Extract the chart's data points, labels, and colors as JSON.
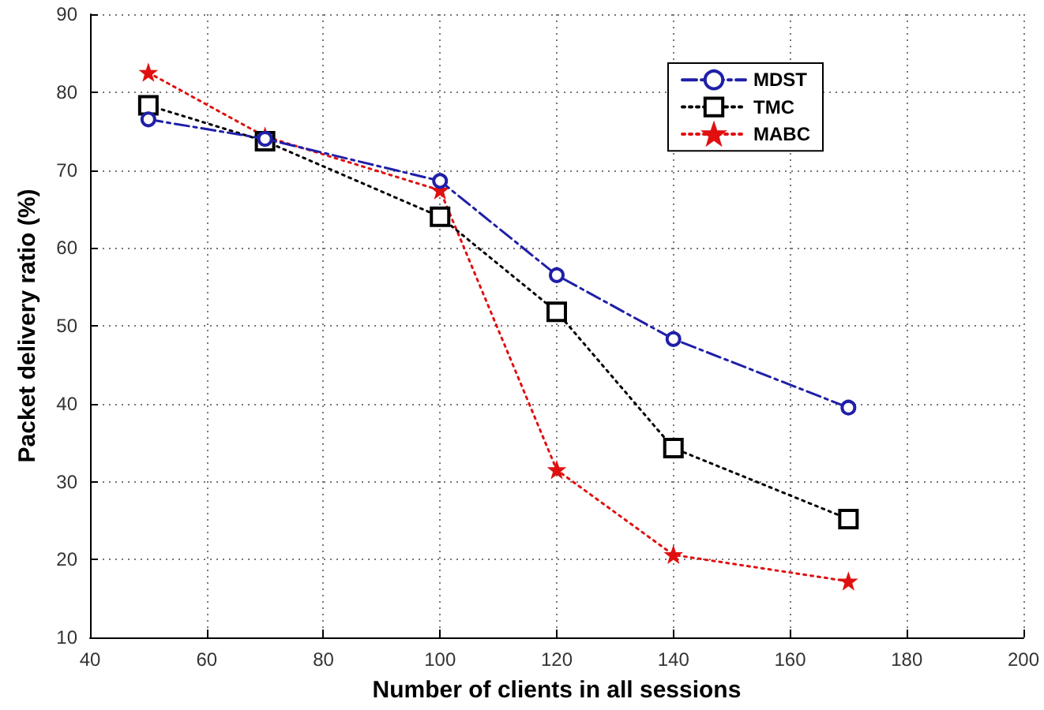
{
  "chart_data": {
    "type": "line",
    "xlabel": "Number of clients in all sessions",
    "ylabel": "Packet delivery ratio (%)",
    "x": [
      50,
      70,
      100,
      120,
      140,
      170
    ],
    "series": [
      {
        "name": "MDST",
        "color": "#1f1fa8",
        "values": [
          76.5,
          74,
          68.6,
          56.5,
          48.3,
          39.5
        ],
        "marker": "circle",
        "line_style": "dashed"
      },
      {
        "name": "TMC",
        "color": "#000000",
        "values": [
          78.3,
          73.7,
          64,
          51.8,
          34.3,
          25.2
        ],
        "marker": "square",
        "line_style": "dotted"
      },
      {
        "name": "MABC",
        "color": "#e01010",
        "values": [
          82.5,
          74.3,
          67.4,
          31.5,
          20.6,
          17.2
        ],
        "marker": "star",
        "line_style": "dotted"
      }
    ],
    "xlim": [
      40,
      200
    ],
    "xticks": [
      40,
      60,
      80,
      100,
      120,
      140,
      160,
      180,
      200
    ],
    "ylim": [
      10,
      90
    ],
    "yticks": [
      10,
      20,
      30,
      40,
      50,
      60,
      70,
      80,
      90
    ],
    "grid": true,
    "legend": "top right"
  }
}
